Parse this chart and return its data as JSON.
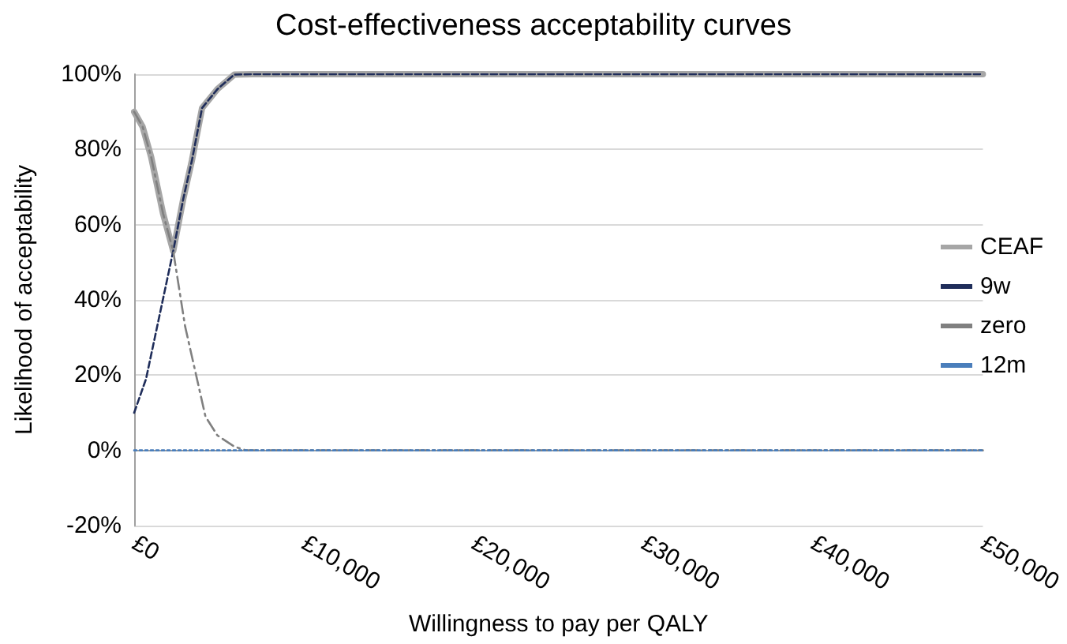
{
  "chart_data": {
    "type": "line",
    "title": "Cost-effectiveness acceptability curves",
    "xlabel": "Willingness to pay per QALY",
    "ylabel": "Likelihood of acceptability",
    "xlim": [
      0,
      50000
    ],
    "xticks": [
      {
        "value": 0,
        "label": "£0"
      },
      {
        "value": 10000,
        "label": "£10,000"
      },
      {
        "value": 20000,
        "label": "£20,000"
      },
      {
        "value": 30000,
        "label": "£30,000"
      },
      {
        "value": 40000,
        "label": "£40,000"
      },
      {
        "value": 50000,
        "label": "£50,000"
      }
    ],
    "ylim": [
      -20,
      100
    ],
    "yticks": [
      {
        "value": -20,
        "label": "-20%"
      },
      {
        "value": 0,
        "label": "0%"
      },
      {
        "value": 20,
        "label": "20%"
      },
      {
        "value": 40,
        "label": "40%"
      },
      {
        "value": 60,
        "label": "60%"
      },
      {
        "value": 80,
        "label": "80%"
      },
      {
        "value": 100,
        "label": "100%"
      }
    ],
    "grid": "y",
    "legend": "right",
    "marker": "none",
    "series": [
      {
        "name": "CEAF",
        "color": "#a6a6a6",
        "line_style": "solid",
        "x": [
          0,
          500,
          1000,
          1700,
          2300,
          2900,
          3400,
          4000,
          4900,
          5900,
          7000,
          10000,
          20000,
          30000,
          40000,
          50000
        ],
        "values": [
          90,
          86,
          78,
          63,
          53,
          67,
          77,
          91,
          96,
          99.9,
          100,
          100,
          100,
          100,
          100,
          100
        ]
      },
      {
        "name": "9w",
        "color": "#1f2d5a",
        "line_style": "dashed",
        "x": [
          0,
          700,
          1500,
          2300,
          2900,
          3400,
          4000,
          4900,
          5900,
          7000,
          10000,
          20000,
          30000,
          40000,
          50000
        ],
        "values": [
          10,
          19,
          36,
          53,
          67,
          77,
          91,
          96,
          99.9,
          100,
          100,
          100,
          100,
          100,
          100
        ]
      },
      {
        "name": "zero",
        "color": "#808080",
        "line_style": "dashdot",
        "x": [
          0,
          500,
          1000,
          1700,
          2300,
          3000,
          3600,
          4200,
          4900,
          5900,
          6600,
          10000,
          20000,
          30000,
          40000,
          50000
        ],
        "values": [
          90,
          86,
          78,
          63,
          53,
          33,
          21,
          9,
          4,
          1,
          0,
          0,
          0,
          0,
          0,
          0
        ]
      },
      {
        "name": "12m",
        "color": "#4a7ebb",
        "line_style": "dotted",
        "x": [
          0,
          10000,
          20000,
          30000,
          40000,
          50000
        ],
        "values": [
          0,
          0,
          0,
          0,
          0,
          0
        ]
      }
    ]
  }
}
